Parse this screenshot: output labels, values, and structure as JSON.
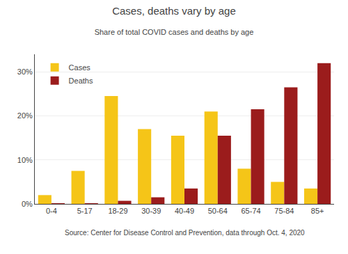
{
  "chart_data": {
    "type": "bar",
    "title": "Cases, deaths vary by age",
    "subtitle": "Share of total COVID cases and deaths by age",
    "source": "Source: Center for Disease Control and Prevention, data through Oct. 4, 2020",
    "categories": [
      "0-4",
      "5-17",
      "18-29",
      "30-39",
      "40-49",
      "50-64",
      "65-74",
      "75-84",
      "85+"
    ],
    "series": [
      {
        "name": "Cases",
        "color": "#F5C518",
        "values": [
          2.0,
          7.5,
          24.5,
          17.0,
          15.5,
          21.0,
          8.0,
          5.0,
          3.5
        ]
      },
      {
        "name": "Deaths",
        "color": "#9B1C1C",
        "values": [
          0.05,
          0.05,
          0.7,
          1.5,
          3.5,
          15.5,
          21.5,
          26.5,
          32.0
        ]
      }
    ],
    "ylim": [
      0,
      34
    ],
    "yticks": [
      {
        "value": 0,
        "label": "0%"
      },
      {
        "value": 10,
        "label": "10%"
      },
      {
        "value": 20,
        "label": "20%"
      },
      {
        "value": 30,
        "label": "30%"
      }
    ],
    "grid": true,
    "legend": "upper left"
  }
}
